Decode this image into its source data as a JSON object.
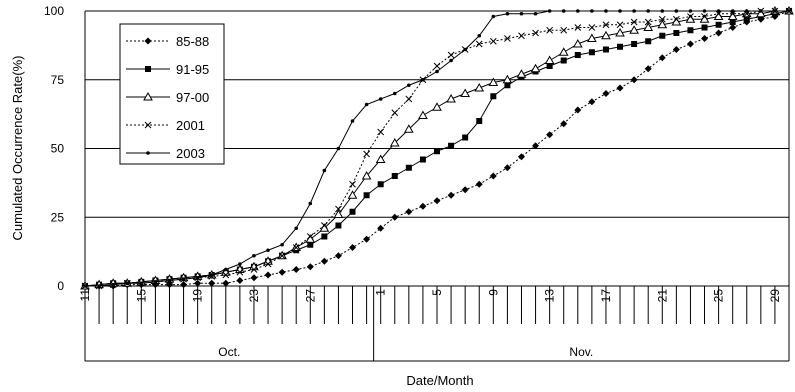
{
  "chart_data": {
    "type": "line",
    "title": "",
    "xlabel": "Date/Month",
    "ylabel": "Cumulated Occurrence Rate(%)",
    "ylim": [
      0,
      100
    ],
    "yticks": [
      "0",
      "25",
      "50",
      "75",
      "100"
    ],
    "grid": "horizontal",
    "legend_position": "top-left",
    "x": [
      "Oct 11",
      "Oct 12",
      "Oct 13",
      "Oct 14",
      "Oct 15",
      "Oct 16",
      "Oct 17",
      "Oct 18",
      "Oct 19",
      "Oct 20",
      "Oct 21",
      "Oct 22",
      "Oct 23",
      "Oct 24",
      "Oct 25",
      "Oct 26",
      "Oct 27",
      "Oct 28",
      "Oct 29",
      "Oct 30",
      "Oct 31",
      "Nov 1",
      "Nov 2",
      "Nov 3",
      "Nov 4",
      "Nov 5",
      "Nov 6",
      "Nov 7",
      "Nov 8",
      "Nov 9",
      "Nov 10",
      "Nov 11",
      "Nov 12",
      "Nov 13",
      "Nov 14",
      "Nov 15",
      "Nov 16",
      "Nov 17",
      "Nov 18",
      "Nov 19",
      "Nov 20",
      "Nov 21",
      "Nov 22",
      "Nov 23",
      "Nov 24",
      "Nov 25",
      "Nov 26",
      "Nov 27",
      "Nov 28",
      "Nov 29",
      "Nov 30"
    ],
    "x_tick_labels": [
      {
        "day": 11,
        "label": "11"
      },
      {
        "day": 15,
        "label": "15"
      },
      {
        "day": 19,
        "label": "19"
      },
      {
        "day": 23,
        "label": "23"
      },
      {
        "day": 27,
        "label": "27"
      },
      {
        "day": 32,
        "label": "1"
      },
      {
        "day": 36,
        "label": "5"
      },
      {
        "day": 40,
        "label": "9"
      },
      {
        "day": 44,
        "label": "13"
      },
      {
        "day": 48,
        "label": "17"
      },
      {
        "day": 52,
        "label": "21"
      },
      {
        "day": 56,
        "label": "25"
      },
      {
        "day": 60,
        "label": "29"
      }
    ],
    "months": [
      "Oct.",
      "Nov."
    ],
    "series": [
      {
        "name": "85-88",
        "marker": "diamond",
        "dash": "dotted",
        "values": [
          0,
          0,
          0,
          0.5,
          0.5,
          0.5,
          0.5,
          0.5,
          1,
          1,
          1,
          2,
          3,
          4,
          5,
          6,
          7,
          9,
          11,
          14,
          17,
          21,
          25,
          27,
          29,
          31,
          33,
          35,
          37,
          40,
          43,
          47,
          51,
          55,
          59,
          64,
          67,
          70,
          72,
          75,
          79,
          83,
          86,
          88,
          90,
          92,
          94,
          96,
          97,
          98,
          100
        ]
      },
      {
        "name": "91-95",
        "marker": "square",
        "dash": "solid",
        "values": [
          0,
          0.5,
          1,
          1,
          1.5,
          2,
          2.5,
          3,
          3.5,
          4,
          5,
          6,
          7,
          9,
          11,
          13,
          15,
          18,
          22,
          27,
          33,
          37,
          40,
          43,
          46,
          49,
          51,
          54,
          60,
          69,
          73,
          76,
          78,
          80,
          82,
          84,
          85,
          86,
          87,
          88,
          89,
          91,
          92,
          93,
          94,
          95,
          96,
          97,
          98,
          99,
          100
        ]
      },
      {
        "name": "97-00",
        "marker": "triangle",
        "dash": "solid",
        "values": [
          0,
          0.5,
          1,
          1,
          1.5,
          2,
          2.5,
          3,
          3.5,
          4,
          5,
          6,
          7,
          9,
          11,
          14,
          17,
          21,
          26,
          33,
          40,
          46,
          52,
          57,
          62,
          65,
          68,
          70,
          72,
          74,
          75,
          77,
          79,
          82,
          85,
          88,
          90,
          91,
          92,
          93,
          94,
          95,
          96,
          97,
          97,
          98,
          98,
          99,
          99,
          100,
          100
        ]
      },
      {
        "name": "2001",
        "marker": "x",
        "dash": "dotted",
        "values": [
          0,
          0,
          0.5,
          1,
          1,
          1.5,
          2,
          2.5,
          3,
          3.5,
          4,
          5,
          6,
          8,
          11,
          14,
          18,
          22,
          28,
          37,
          48,
          56,
          63,
          68,
          75,
          80,
          84,
          86,
          88,
          89,
          90,
          91,
          92,
          93,
          93,
          94,
          94,
          95,
          95,
          96,
          96,
          97,
          97,
          98,
          98,
          99,
          99,
          99,
          100,
          100,
          100
        ]
      },
      {
        "name": "2003",
        "marker": "dot",
        "dash": "solid",
        "values": [
          0,
          0,
          0.5,
          1,
          1,
          1.5,
          2,
          2.5,
          3,
          4,
          6,
          8,
          11,
          13,
          15,
          21,
          30,
          42,
          50,
          60,
          66,
          68,
          70,
          73,
          75,
          78,
          82,
          86,
          91,
          98,
          99,
          99,
          99,
          100,
          100,
          100,
          100,
          100,
          100,
          100,
          100,
          100,
          100,
          100,
          100,
          100,
          100,
          100,
          100,
          100,
          100
        ]
      }
    ]
  }
}
